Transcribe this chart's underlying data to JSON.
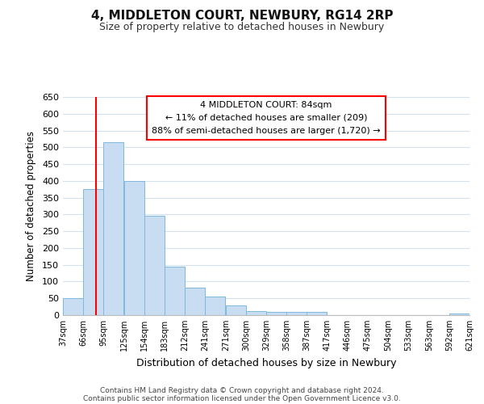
{
  "title": "4, MIDDLETON COURT, NEWBURY, RG14 2RP",
  "subtitle": "Size of property relative to detached houses in Newbury",
  "xlabel": "Distribution of detached houses by size in Newbury",
  "ylabel": "Number of detached properties",
  "bar_left_edges": [
    37,
    66,
    95,
    125,
    154,
    183,
    212,
    241,
    271,
    300,
    329,
    358,
    387,
    417,
    446,
    475,
    504,
    533,
    563,
    592
  ],
  "bar_widths": [
    29,
    29,
    29,
    29,
    29,
    29,
    29,
    29,
    29,
    29,
    29,
    29,
    29,
    29,
    29,
    29,
    29,
    29,
    29,
    29
  ],
  "bar_heights": [
    50,
    375,
    515,
    400,
    295,
    145,
    82,
    55,
    30,
    13,
    10,
    10,
    10,
    0,
    0,
    0,
    0,
    0,
    0,
    5
  ],
  "bar_color": "#c8ddf2",
  "bar_edgecolor": "#7fb9de",
  "x_tick_labels": [
    "37sqm",
    "66sqm",
    "95sqm",
    "125sqm",
    "154sqm",
    "183sqm",
    "212sqm",
    "241sqm",
    "271sqm",
    "300sqm",
    "329sqm",
    "358sqm",
    "387sqm",
    "417sqm",
    "446sqm",
    "475sqm",
    "504sqm",
    "533sqm",
    "563sqm",
    "592sqm",
    "621sqm"
  ],
  "ylim": [
    0,
    650
  ],
  "yticks": [
    0,
    50,
    100,
    150,
    200,
    250,
    300,
    350,
    400,
    450,
    500,
    550,
    600,
    650
  ],
  "red_line_x": 84,
  "annotation_title": "4 MIDDLETON COURT: 84sqm",
  "annotation_line1": "← 11% of detached houses are smaller (209)",
  "annotation_line2": "88% of semi-detached houses are larger (1,720) →",
  "footer_line1": "Contains HM Land Registry data © Crown copyright and database right 2024.",
  "footer_line2": "Contains public sector information licensed under the Open Government Licence v3.0.",
  "background_color": "#ffffff",
  "grid_color": "#d4e2ef"
}
